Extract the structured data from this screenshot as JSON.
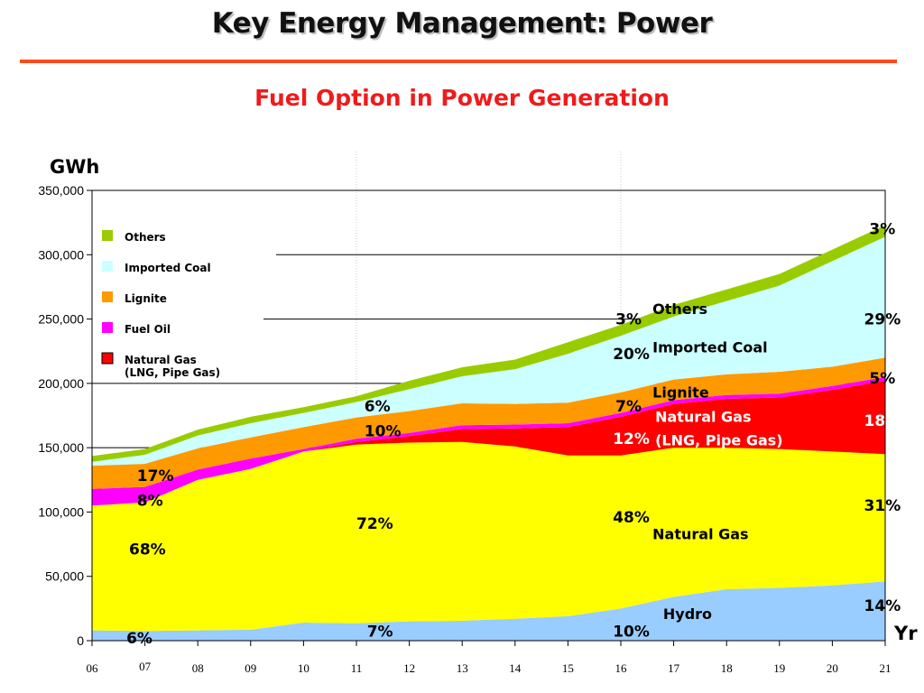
{
  "header": {
    "title": "Key Energy Management: Power",
    "subtitle": "Fuel Option in Power Generation"
  },
  "colors": {
    "accent_red": "#ee1c1c",
    "rule": "#ff4a1c",
    "hydro": "#99ccff",
    "natural_gas": "#ffff00",
    "natural_gas_lng": "#ff0000",
    "fuel_oil": "#ff00ff",
    "lignite": "#ff9900",
    "imported_coal": "#ccffff",
    "others": "#99cc00"
  },
  "chart_data": {
    "type": "area",
    "stacked": true,
    "ylabel": "GWh",
    "xlabel": "Yr",
    "ylim": [
      0,
      350000
    ],
    "yticks": [
      "0",
      "50,000",
      "100,000",
      "150,000",
      "200,000",
      "250,000",
      "300,000",
      "350,000"
    ],
    "ytick_values": [
      0,
      50000,
      100000,
      150000,
      200000,
      250000,
      300000,
      350000
    ],
    "x": [
      "06",
      "07",
      "08",
      "09",
      "10",
      "11",
      "12",
      "13",
      "14",
      "15",
      "16",
      "17",
      "18",
      "19",
      "20",
      "21"
    ],
    "series": [
      {
        "key": "hydro",
        "name": "Hydro",
        "values": [
          8000,
          7500,
          8000,
          8500,
          14000,
          13500,
          15000,
          15500,
          17000,
          19000,
          25000,
          34000,
          40000,
          41000,
          43000,
          46000
        ]
      },
      {
        "key": "natural_gas",
        "name": "Natural Gas",
        "values": [
          97000,
          100000,
          117000,
          125000,
          133000,
          139000,
          139000,
          139000,
          134000,
          125000,
          119000,
          116000,
          110000,
          108000,
          104000,
          99000
        ]
      },
      {
        "key": "natural_gas_lng",
        "name": "Natural Gas (LNG, Pipe Gas)",
        "values": [
          0,
          0,
          0,
          0,
          0,
          2000,
          5000,
          10000,
          14000,
          22000,
          30000,
          34000,
          38000,
          40000,
          48000,
          57000
        ]
      },
      {
        "key": "fuel_oil",
        "name": "Fuel Oil",
        "values": [
          13000,
          12000,
          8000,
          8000,
          2000,
          2500,
          2500,
          3000,
          3000,
          3000,
          3000,
          3000,
          3000,
          3000,
          3000,
          3000
        ]
      },
      {
        "key": "lignite",
        "name": "Lignite",
        "values": [
          18000,
          18000,
          16500,
          16500,
          17000,
          16500,
          17000,
          17000,
          16000,
          16000,
          16000,
          16000,
          16000,
          17000,
          15000,
          15000
        ]
      },
      {
        "key": "imported_coal",
        "name": "Imported Coal",
        "values": [
          3000,
          7000,
          10000,
          11000,
          11000,
          12000,
          17000,
          21000,
          27000,
          38000,
          44000,
          49000,
          57000,
          67000,
          82000,
          94000
        ]
      },
      {
        "key": "others",
        "name": "Others",
        "values": [
          4500,
          4500,
          4500,
          5000,
          4500,
          4500,
          6500,
          7000,
          7500,
          9000,
          8500,
          9000,
          9000,
          9000,
          9000,
          9000
        ]
      }
    ],
    "legend": {
      "placement": "top-left",
      "items": [
        {
          "key": "others",
          "label": "Others"
        },
        {
          "key": "imported_coal",
          "label": "Imported Coal"
        },
        {
          "key": "lignite",
          "label": "Lignite"
        },
        {
          "key": "fuel_oil",
          "label": "Fuel Oil"
        },
        {
          "key": "natural_gas_lng",
          "label": "Natural Gas\n(LNG, Pipe Gas)"
        }
      ]
    },
    "annotations": {
      "series_labels": [
        {
          "text": "Others",
          "x": 16.6,
          "y": 254000,
          "color": "#000000"
        },
        {
          "text": "Imported Coal",
          "x": 16.6,
          "y": 224000,
          "color": "#000000"
        },
        {
          "text": "Lignite",
          "x": 16.6,
          "y": 189000,
          "color": "#000000"
        },
        {
          "text": "Natural Gas",
          "x": 16.65,
          "y": 170000,
          "color": "#ffffff"
        },
        {
          "text": "(LNG, Pipe Gas)",
          "x": 16.65,
          "y": 152000,
          "color": "#ffffff"
        },
        {
          "text": "Natural Gas",
          "x": 16.6,
          "y": 79000,
          "color": "#000000"
        },
        {
          "text": "Hydro",
          "x": 16.8,
          "y": 17000,
          "color": "#000000"
        }
      ],
      "percent_labels": [
        {
          "text": "17%",
          "x": 6.85,
          "y": 124000,
          "color": "#000000"
        },
        {
          "text": "8%",
          "x": 6.85,
          "y": 105000,
          "color": "#000000"
        },
        {
          "text": "68%",
          "x": 6.7,
          "y": 67000,
          "color": "#000000"
        },
        {
          "text": "6%",
          "x": 6.65,
          "y": -2000,
          "color": "#000000"
        },
        {
          "text": "6%",
          "x": 11.15,
          "y": 178000,
          "color": "#000000"
        },
        {
          "text": "10%",
          "x": 11.15,
          "y": 159000,
          "color": "#000000"
        },
        {
          "text": "72%",
          "x": 11.0,
          "y": 87000,
          "color": "#000000"
        },
        {
          "text": "7%",
          "x": 11.2,
          "y": 3000,
          "color": "#000000"
        },
        {
          "text": "3%",
          "x": 15.9,
          "y": 246000,
          "color": "#000000"
        },
        {
          "text": "20%",
          "x": 15.85,
          "y": 219000,
          "color": "#000000"
        },
        {
          "text": "7%",
          "x": 15.9,
          "y": 178000,
          "color": "#000000"
        },
        {
          "text": "12%",
          "x": 15.85,
          "y": 153000,
          "color": "#ffffff"
        },
        {
          "text": "48%",
          "x": 15.85,
          "y": 92000,
          "color": "#000000"
        },
        {
          "text": "10%",
          "x": 15.85,
          "y": 3000,
          "color": "#000000"
        },
        {
          "text": "3%",
          "x": 20.7,
          "y": 316000,
          "color": "#000000"
        },
        {
          "text": "29%",
          "x": 20.6,
          "y": 246000,
          "color": "#000000"
        },
        {
          "text": "5%",
          "x": 20.7,
          "y": 200000,
          "color": "#000000"
        },
        {
          "text": "18%",
          "x": 20.6,
          "y": 167000,
          "color": "#ffffff"
        },
        {
          "text": "31%",
          "x": 20.6,
          "y": 101000,
          "color": "#000000"
        },
        {
          "text": "14%",
          "x": 20.6,
          "y": 23000,
          "color": "#000000"
        }
      ]
    }
  }
}
